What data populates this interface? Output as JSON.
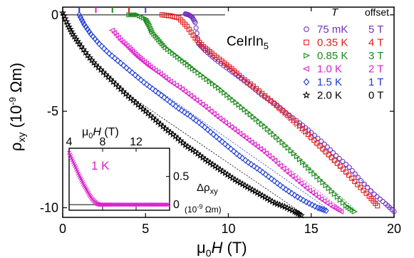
{
  "chart_data": [
    {
      "type": "scatter",
      "title": "",
      "annotation": "CeIrIn5",
      "xlabel": "μ0H (T)",
      "ylabel": "ρxy (10^-9 Ωm)",
      "xlim": [
        0,
        20
      ],
      "ylim": [
        -10.5,
        0.4
      ],
      "x_ticks": [
        "0",
        "5",
        "10",
        "15",
        "20"
      ],
      "y_ticks": [
        "0",
        "-5",
        "-10"
      ],
      "grid": false,
      "legend": {
        "placement": "right",
        "header_T": "T",
        "header_offset": "offset"
      },
      "series": [
        {
          "name": "75 mK",
          "offset_label": "5 T",
          "color": "#7030c0",
          "marker": "circle",
          "offset_T": 5,
          "x": [
            7.4,
            7.6,
            7.8,
            8.0,
            8.2,
            8.6,
            9.2,
            9.9,
            10.6,
            11.3,
            12.0,
            12.8,
            13.5,
            14.3,
            15.0,
            15.8,
            16.5,
            17.3,
            18.0,
            18.8,
            19.5,
            20.0
          ],
          "y": [
            0.05,
            0.0,
            -0.1,
            -0.4,
            -1.5,
            -1.85,
            -2.3,
            -2.75,
            -3.2,
            -3.65,
            -4.15,
            -4.6,
            -5.1,
            -5.6,
            -6.1,
            -6.7,
            -7.3,
            -7.9,
            -8.6,
            -9.3,
            -9.8,
            -10.2
          ]
        },
        {
          "name": "0.35 K",
          "offset_label": "4 T",
          "color": "#e02020",
          "marker": "square",
          "offset_T": 4,
          "x": [
            6.0,
            6.5,
            7.0,
            7.5,
            8.0,
            8.5,
            9.0,
            9.6,
            10.2,
            10.8,
            11.5,
            12.2,
            12.9,
            13.6,
            14.3,
            15.0,
            15.7,
            16.4,
            17.1,
            17.8,
            18.5,
            19.0
          ],
          "y": [
            0.0,
            -0.05,
            -0.15,
            -0.6,
            -1.2,
            -1.65,
            -2.0,
            -2.4,
            -2.8,
            -3.25,
            -3.7,
            -4.2,
            -4.7,
            -5.2,
            -5.75,
            -6.35,
            -6.95,
            -7.55,
            -8.15,
            -8.8,
            -9.4,
            -9.9
          ]
        },
        {
          "name": "0.85 K",
          "offset_label": "3 T",
          "color": "#1a8a1a",
          "marker": "triangle-right",
          "offset_T": 3,
          "x": [
            4.0,
            4.5,
            5.0,
            5.2,
            5.4,
            5.8,
            6.2,
            6.8,
            7.4,
            8.0,
            8.7,
            9.4,
            10.1,
            10.8,
            11.5,
            12.2,
            12.9,
            13.6,
            14.3,
            15.0,
            15.7,
            16.4,
            17.1,
            17.6
          ],
          "y": [
            0.0,
            0.0,
            -0.2,
            -0.5,
            -0.9,
            -1.3,
            -1.7,
            -2.1,
            -2.5,
            -2.9,
            -3.35,
            -3.8,
            -4.3,
            -4.8,
            -5.3,
            -5.8,
            -6.35,
            -6.9,
            -7.5,
            -8.1,
            -8.7,
            -9.3,
            -9.9,
            -10.2
          ]
        },
        {
          "name": "1.0 K",
          "offset_label": "2 T",
          "color": "#dd22cc",
          "marker": "triangle-left",
          "offset_T": 2,
          "x": [
            3.0,
            3.5,
            4.0,
            4.4,
            4.8,
            5.3,
            5.9,
            6.5,
            7.2,
            7.9,
            8.6,
            9.3,
            10.0,
            10.7,
            11.4,
            12.1,
            12.8,
            13.5,
            14.2,
            14.9,
            15.6,
            16.3,
            16.8
          ],
          "y": [
            -0.8,
            -1.3,
            -1.7,
            -2.05,
            -2.35,
            -2.7,
            -3.05,
            -3.45,
            -3.85,
            -4.3,
            -4.75,
            -5.25,
            -5.7,
            -6.15,
            -6.6,
            -7.05,
            -7.55,
            -8.1,
            -8.6,
            -9.1,
            -9.55,
            -9.95,
            -10.2
          ]
        },
        {
          "name": "1.5 K",
          "offset_label": "1 T",
          "color": "#1a3ad8",
          "marker": "diamond",
          "offset_T": 1,
          "x": [
            1.0,
            1.3,
            1.7,
            2.2,
            2.8,
            3.5,
            4.2,
            4.9,
            5.6,
            6.3,
            7.0,
            7.7,
            8.4,
            9.1,
            9.8,
            10.5,
            11.2,
            11.9,
            12.6,
            13.3,
            14.0,
            14.7,
            15.4,
            15.9
          ],
          "y": [
            0.0,
            -0.5,
            -1.0,
            -1.5,
            -2.0,
            -2.5,
            -3.0,
            -3.5,
            -3.95,
            -4.4,
            -4.85,
            -5.25,
            -5.7,
            -6.2,
            -6.7,
            -7.2,
            -7.65,
            -8.05,
            -8.5,
            -8.95,
            -9.35,
            -9.7,
            -10.0,
            -10.15
          ]
        },
        {
          "name": "2.0 K",
          "offset_label": "0 T",
          "color": "#000000",
          "marker": "star",
          "offset_T": 0,
          "x": [
            0.0,
            0.3,
            0.6,
            1.0,
            1.5,
            2.0,
            2.6,
            3.2,
            3.8,
            4.4,
            5.0,
            5.6,
            6.2,
            6.8,
            7.4,
            8.0,
            8.6,
            9.2,
            9.8,
            10.4,
            11.0,
            11.6,
            12.2,
            12.8,
            13.4,
            14.0,
            14.4
          ],
          "y": [
            0.1,
            -0.5,
            -1.0,
            -1.5,
            -2.1,
            -2.6,
            -3.1,
            -3.6,
            -4.1,
            -4.55,
            -5.0,
            -5.45,
            -5.9,
            -6.3,
            -6.75,
            -7.1,
            -7.5,
            -7.85,
            -8.2,
            -8.55,
            -8.85,
            -9.15,
            -9.45,
            -9.75,
            -9.95,
            -10.2,
            -10.4
          ]
        }
      ],
      "offset_ticks": [
        {
          "x": 1,
          "color": "#1a3ad8"
        },
        {
          "x": 2,
          "color": "#dd22cc"
        },
        {
          "x": 3,
          "color": "#1a8a1a"
        },
        {
          "x": 4,
          "color": "#e02020"
        },
        {
          "x": 5,
          "color": "#7030c0"
        }
      ]
    },
    {
      "type": "scatter",
      "role": "inset",
      "title": "",
      "annotation": "1 K",
      "xlabel": "μ0H (T)",
      "ylabel": "Δρxy (10^-9 Ωm)",
      "xlim": [
        4,
        16
      ],
      "ylim": [
        -0.1,
        1.0
      ],
      "x_ticks": [
        "4",
        "8",
        "12"
      ],
      "y_ticks": [
        "0",
        "0.5"
      ],
      "series": [
        {
          "name": "1 K",
          "color": "#dd22cc",
          "marker": "x",
          "x": [
            4.0,
            4.3,
            4.6,
            4.9,
            5.2,
            5.5,
            5.8,
            6.1,
            6.4,
            6.7,
            7.0,
            7.3,
            7.6,
            7.9,
            8.2,
            8.6,
            9.0,
            9.5,
            10.0,
            10.5,
            11.0,
            11.5,
            12.0,
            12.5,
            13.0,
            13.5,
            14.0,
            14.5,
            15.0,
            15.5,
            16.0
          ],
          "y": [
            0.92,
            0.82,
            0.72,
            0.62,
            0.52,
            0.43,
            0.34,
            0.26,
            0.18,
            0.11,
            0.06,
            0.02,
            0.0,
            0.0,
            0.0,
            0.0,
            0.0,
            0.0,
            0.0,
            0.0,
            0.0,
            0.0,
            0.0,
            0.0,
            0.0,
            0.0,
            0.0,
            0.0,
            0.0,
            0.0,
            0.0
          ]
        }
      ]
    }
  ]
}
